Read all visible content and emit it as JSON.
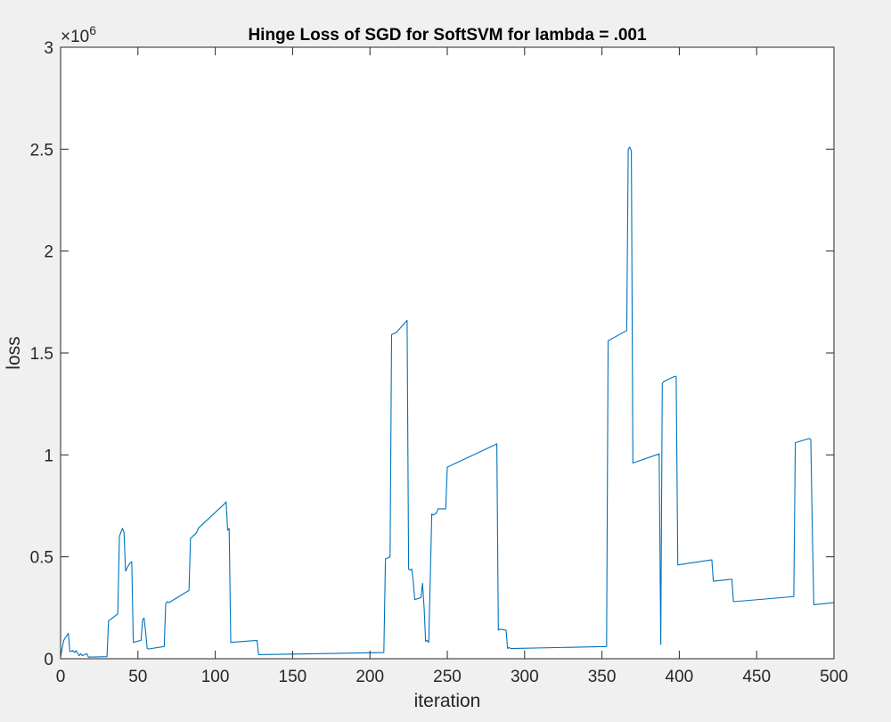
{
  "chart_data": {
    "type": "line",
    "title": "Hinge Loss of SGD for SoftSVM for lambda = .001",
    "xlabel": "iteration",
    "ylabel": "loss",
    "xlim": [
      0,
      500
    ],
    "ylim": [
      0,
      3000000
    ],
    "y_exponent_label": "×10",
    "y_exponent_power": "6",
    "xticks": [
      0,
      50,
      100,
      150,
      200,
      250,
      300,
      350,
      400,
      450,
      500
    ],
    "xtick_labels": [
      "0",
      "50",
      "100",
      "150",
      "200",
      "250",
      "300",
      "350",
      "400",
      "450",
      "500"
    ],
    "yticks": [
      0,
      500000,
      1000000,
      1500000,
      2000000,
      2500000,
      3000000
    ],
    "ytick_labels": [
      "0",
      "0.5",
      "1",
      "1.5",
      "2",
      "2.5",
      "3"
    ],
    "grid": false,
    "series": [
      {
        "color": "#0072bd",
        "x": [
          0,
          2,
          5,
          6,
          8,
          9,
          10,
          12,
          13,
          14,
          17,
          18,
          30,
          31,
          37,
          38,
          39,
          40,
          41,
          42,
          44,
          45,
          46,
          47,
          52,
          53,
          54,
          55,
          56,
          57,
          67,
          68,
          69,
          70,
          83,
          84,
          86,
          87,
          88,
          89,
          106,
          107,
          108,
          109,
          110,
          127,
          128,
          209,
          210,
          213,
          214,
          217,
          224,
          225,
          226,
          227,
          228,
          229,
          233,
          234,
          235,
          236,
          237,
          238,
          240,
          241,
          243,
          244,
          249,
          250,
          281,
          282,
          283,
          284,
          288,
          289,
          290,
          291,
          353,
          354,
          366,
          367,
          368,
          369,
          370,
          387,
          388,
          389,
          390,
          397,
          398,
          399,
          421,
          422,
          434,
          435,
          474,
          475,
          484,
          485,
          486,
          487,
          500
        ],
        "y": [
          10000,
          90000,
          125000,
          35000,
          40000,
          30000,
          40000,
          15000,
          25000,
          15000,
          25000,
          8000,
          10000,
          185000,
          220000,
          600000,
          620000,
          640000,
          620000,
          430000,
          460000,
          470000,
          475000,
          80000,
          90000,
          190000,
          200000,
          130000,
          50000,
          48000,
          60000,
          270000,
          280000,
          275000,
          335000,
          590000,
          605000,
          610000,
          620000,
          640000,
          760000,
          770000,
          630000,
          640000,
          80000,
          90000,
          20000,
          30000,
          490000,
          500000,
          1590000,
          1600000,
          1660000,
          440000,
          435000,
          440000,
          380000,
          290000,
          300000,
          370000,
          250000,
          85000,
          90000,
          80000,
          710000,
          705000,
          715000,
          735000,
          735000,
          940000,
          1050000,
          1055000,
          140000,
          145000,
          140000,
          50000,
          55000,
          50000,
          60000,
          1560000,
          1610000,
          2500000,
          2510000,
          2490000,
          960000,
          1005000,
          70000,
          1350000,
          1360000,
          1385000,
          1385000,
          460000,
          485000,
          380000,
          390000,
          280000,
          305000,
          1060000,
          1080000,
          1075000,
          630000,
          265000,
          275000
        ]
      }
    ]
  }
}
